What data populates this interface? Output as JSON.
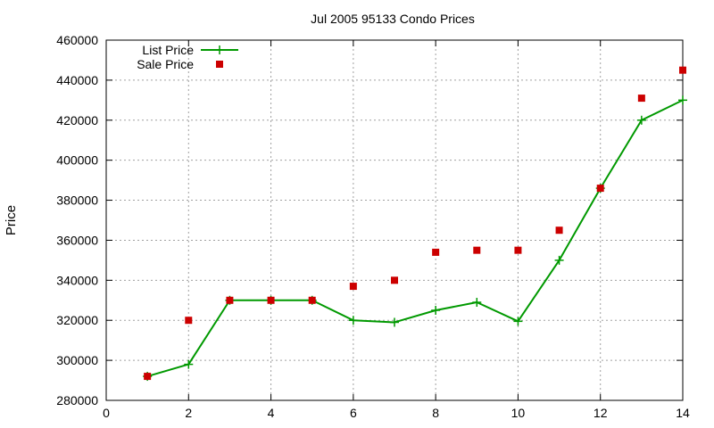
{
  "chart_data": {
    "type": "line",
    "title": "Jul 2005 95133 Condo Prices",
    "xlabel": "",
    "ylabel": "Price",
    "xlim": [
      0,
      14
    ],
    "ylim": [
      280000,
      460000
    ],
    "x_ticks": [
      0,
      2,
      4,
      6,
      8,
      10,
      12,
      14
    ],
    "y_ticks": [
      280000,
      300000,
      320000,
      340000,
      360000,
      380000,
      400000,
      420000,
      440000,
      460000
    ],
    "grid": true,
    "legend_position": "top-left",
    "series": [
      {
        "name": "List Price",
        "type": "line",
        "marker": "plus",
        "color": "#009900",
        "x": [
          1,
          2,
          3,
          4,
          5,
          6,
          7,
          8,
          9,
          10,
          11,
          12,
          13,
          14
        ],
        "y": [
          292000,
          298000,
          330000,
          330000,
          330000,
          320000,
          319000,
          325000,
          329000,
          319500,
          350000,
          386000,
          420000,
          430000
        ]
      },
      {
        "name": "Sale Price",
        "type": "scatter",
        "marker": "square",
        "color": "#cc0000",
        "x": [
          1,
          2,
          3,
          4,
          5,
          6,
          7,
          8,
          9,
          10,
          11,
          12,
          13,
          14
        ],
        "y": [
          292000,
          320000,
          330000,
          330000,
          330000,
          337000,
          340000,
          354000,
          355000,
          355000,
          365000,
          386000,
          431000,
          445000
        ]
      }
    ]
  }
}
